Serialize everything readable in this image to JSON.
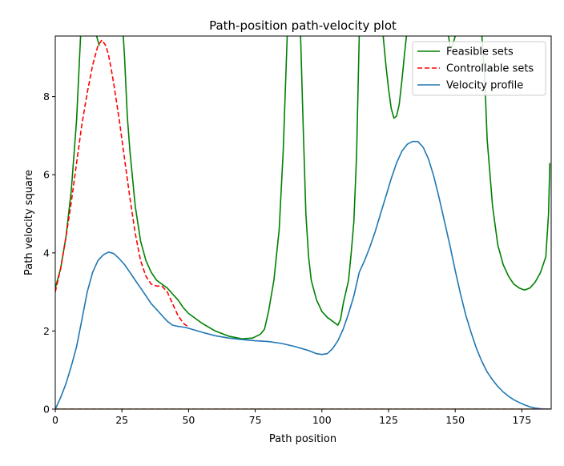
{
  "chart_data": {
    "type": "line",
    "title": "Path-position path-velocity plot",
    "xlabel": "Path position",
    "ylabel": "Path velocity square",
    "xlim": [
      0,
      186
    ],
    "ylim": [
      0,
      9.55
    ],
    "xticks": [
      "0",
      "25",
      "50",
      "75",
      "100",
      "125",
      "150",
      "175"
    ],
    "xtick_values": [
      0,
      25,
      50,
      75,
      100,
      125,
      150,
      175
    ],
    "yticks": [
      "0",
      "2",
      "4",
      "6",
      "8"
    ],
    "ytick_values": [
      0,
      2,
      4,
      6,
      8
    ],
    "grid": false,
    "legend_position": "top-right",
    "series": [
      {
        "name": "Feasible sets",
        "color": "#008000",
        "style": "solid",
        "lower": [
          [
            0,
            0
          ],
          [
            186,
            0
          ]
        ],
        "segments": [
          [
            [
              0,
              3.1
            ],
            [
              2,
              3.6
            ],
            [
              4,
              4.4
            ],
            [
              6,
              5.6
            ],
            [
              8,
              7.4
            ],
            [
              9.5,
              9.55
            ]
          ],
          [
            [
              15.5,
              9.55
            ],
            [
              16.5,
              9.3
            ]
          ],
          [
            [
              25.5,
              9.55
            ],
            [
              26,
              9.0
            ],
            [
              27,
              7.5
            ],
            [
              28,
              6.6
            ],
            [
              30,
              5.2
            ],
            [
              32,
              4.3
            ],
            [
              34,
              3.8
            ],
            [
              36,
              3.5
            ],
            [
              38,
              3.3
            ],
            [
              40,
              3.2
            ],
            [
              42,
              3.1
            ],
            [
              44,
              2.95
            ],
            [
              46,
              2.8
            ],
            [
              48,
              2.6
            ],
            [
              50,
              2.45
            ],
            [
              55,
              2.2
            ],
            [
              60,
              2.0
            ],
            [
              65,
              1.87
            ],
            [
              70,
              1.8
            ],
            [
              74,
              1.82
            ],
            [
              77,
              1.92
            ],
            [
              78.5,
              2.05
            ],
            [
              80,
              2.5
            ],
            [
              82,
              3.3
            ],
            [
              84,
              4.6
            ],
            [
              85.5,
              6.6
            ],
            [
              86.5,
              8.6
            ],
            [
              87,
              9.55
            ]
          ],
          [
            [
              92,
              9.55
            ],
            [
              93,
              7.2
            ],
            [
              94,
              5.0
            ],
            [
              95,
              3.9
            ],
            [
              96,
              3.3
            ],
            [
              98,
              2.8
            ],
            [
              100,
              2.5
            ],
            [
              102,
              2.35
            ],
            [
              104,
              2.25
            ],
            [
              106,
              2.15
            ],
            [
              107,
              2.3
            ],
            [
              108,
              2.7
            ],
            [
              110,
              3.3
            ],
            [
              111,
              4.0
            ],
            [
              112,
              4.8
            ],
            [
              113,
              6.5
            ],
            [
              114,
              9.55
            ]
          ],
          [
            [
              123,
              9.55
            ],
            [
              124,
              8.8
            ],
            [
              125,
              8.2
            ],
            [
              126,
              7.7
            ],
            [
              127,
              7.45
            ],
            [
              128,
              7.5
            ],
            [
              129,
              7.8
            ],
            [
              130,
              8.4
            ],
            [
              131,
              9.1
            ],
            [
              131.7,
              9.55
            ]
          ],
          [
            [
              147.5,
              9.55
            ],
            [
              148.2,
              9.2
            ],
            [
              149,
              9.3
            ],
            [
              150,
              9.55
            ]
          ],
          [
            [
              160,
              9.55
            ],
            [
              161,
              8.6
            ],
            [
              162,
              6.9
            ],
            [
              164,
              5.2
            ],
            [
              166,
              4.2
            ],
            [
              168,
              3.7
            ],
            [
              170,
              3.4
            ],
            [
              172,
              3.2
            ],
            [
              174,
              3.1
            ],
            [
              176,
              3.05
            ],
            [
              178,
              3.1
            ],
            [
              180,
              3.25
            ],
            [
              182,
              3.5
            ],
            [
              184,
              3.9
            ],
            [
              185,
              5.0
            ],
            [
              185.5,
              6.3
            ]
          ]
        ]
      },
      {
        "name": "Controllable sets",
        "color": "#ff0000",
        "style": "dashed",
        "lower": [
          [
            0,
            0
          ],
          [
            186,
            0
          ]
        ],
        "segments": [
          [
            [
              0,
              3.0
            ],
            [
              2,
              3.6
            ],
            [
              4,
              4.4
            ],
            [
              6,
              5.3
            ],
            [
              8,
              6.3
            ],
            [
              10,
              7.3
            ],
            [
              12,
              8.1
            ],
            [
              14,
              8.8
            ],
            [
              16,
              9.3
            ],
            [
              17.5,
              9.45
            ],
            [
              19,
              9.3
            ],
            [
              20,
              9.05
            ],
            [
              21,
              8.7
            ],
            [
              22,
              8.3
            ],
            [
              24,
              7.4
            ],
            [
              26,
              6.4
            ],
            [
              28,
              5.4
            ],
            [
              30,
              4.5
            ],
            [
              32,
              3.8
            ],
            [
              34,
              3.4
            ],
            [
              36,
              3.2
            ],
            [
              38,
              3.15
            ],
            [
              40,
              3.15
            ],
            [
              42,
              3.0
            ],
            [
              44,
              2.7
            ],
            [
              46,
              2.4
            ],
            [
              48,
              2.2
            ],
            [
              50,
              2.1
            ]
          ]
        ]
      },
      {
        "name": "Velocity profile",
        "color": "#1f77b4",
        "style": "solid",
        "points": [
          [
            0,
            0
          ],
          [
            2,
            0.3
          ],
          [
            4,
            0.65
          ],
          [
            6,
            1.1
          ],
          [
            8,
            1.6
          ],
          [
            10,
            2.3
          ],
          [
            12,
            3.0
          ],
          [
            14,
            3.5
          ],
          [
            16,
            3.8
          ],
          [
            18,
            3.95
          ],
          [
            20,
            4.02
          ],
          [
            22,
            3.98
          ],
          [
            24,
            3.85
          ],
          [
            26,
            3.7
          ],
          [
            28,
            3.5
          ],
          [
            30,
            3.3
          ],
          [
            32,
            3.1
          ],
          [
            34,
            2.9
          ],
          [
            36,
            2.7
          ],
          [
            38,
            2.55
          ],
          [
            40,
            2.4
          ],
          [
            42,
            2.25
          ],
          [
            44,
            2.15
          ],
          [
            46,
            2.12
          ],
          [
            48,
            2.1
          ],
          [
            50,
            2.07
          ],
          [
            55,
            1.97
          ],
          [
            60,
            1.88
          ],
          [
            65,
            1.82
          ],
          [
            70,
            1.78
          ],
          [
            75,
            1.75
          ],
          [
            80,
            1.73
          ],
          [
            85,
            1.68
          ],
          [
            90,
            1.6
          ],
          [
            95,
            1.5
          ],
          [
            98,
            1.42
          ],
          [
            100,
            1.4
          ],
          [
            102,
            1.42
          ],
          [
            104,
            1.55
          ],
          [
            106,
            1.75
          ],
          [
            108,
            2.05
          ],
          [
            110,
            2.45
          ],
          [
            112,
            2.9
          ],
          [
            114,
            3.5
          ],
          [
            116,
            3.8
          ],
          [
            118,
            4.15
          ],
          [
            120,
            4.55
          ],
          [
            122,
            5.0
          ],
          [
            124,
            5.45
          ],
          [
            126,
            5.9
          ],
          [
            128,
            6.3
          ],
          [
            130,
            6.6
          ],
          [
            132,
            6.78
          ],
          [
            134,
            6.85
          ],
          [
            136,
            6.85
          ],
          [
            138,
            6.7
          ],
          [
            140,
            6.4
          ],
          [
            142,
            5.95
          ],
          [
            144,
            5.4
          ],
          [
            146,
            4.8
          ],
          [
            148,
            4.2
          ],
          [
            150,
            3.55
          ],
          [
            152,
            2.95
          ],
          [
            154,
            2.4
          ],
          [
            156,
            1.95
          ],
          [
            158,
            1.55
          ],
          [
            160,
            1.22
          ],
          [
            162,
            0.95
          ],
          [
            164,
            0.75
          ],
          [
            166,
            0.58
          ],
          [
            168,
            0.44
          ],
          [
            170,
            0.33
          ],
          [
            172,
            0.24
          ],
          [
            174,
            0.17
          ],
          [
            176,
            0.11
          ],
          [
            178,
            0.06
          ],
          [
            180,
            0.03
          ],
          [
            182,
            0.01
          ],
          [
            185,
            0
          ]
        ]
      }
    ]
  }
}
